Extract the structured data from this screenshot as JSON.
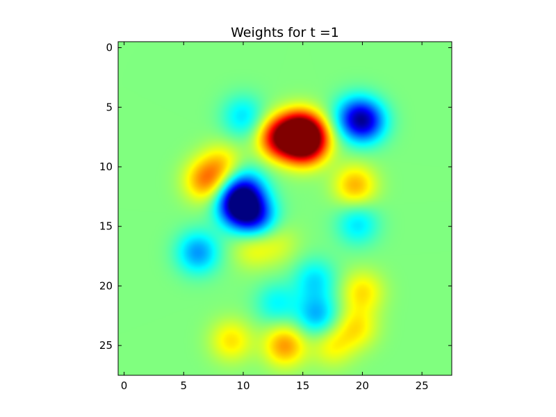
{
  "chart_data": {
    "type": "heatmap",
    "title": "Weights for t =1",
    "xlabel": "",
    "ylabel": "",
    "grid": false,
    "xlim": [
      -0.5,
      27.5
    ],
    "ylim": [
      27.5,
      -0.5
    ],
    "xticks": [
      0,
      5,
      10,
      15,
      20,
      25
    ],
    "yticks": [
      0,
      5,
      10,
      15,
      20,
      25
    ],
    "xtick_labels": [
      "0",
      "5",
      "10",
      "15",
      "20",
      "25"
    ],
    "ytick_labels": [
      "0",
      "5",
      "10",
      "15",
      "20",
      "25"
    ],
    "colormap": "jet",
    "interpolation": "smooth",
    "value_range": [
      -1,
      1
    ],
    "background_value": 0,
    "blobs": [
      {
        "x": 14.8,
        "y": 7.1,
        "value": 1.0
      },
      {
        "x": 13.0,
        "y": 7.6,
        "value": 0.75
      },
      {
        "x": 15.6,
        "y": 7.8,
        "value": 0.55
      },
      {
        "x": 15.0,
        "y": 8.4,
        "value": 0.35
      },
      {
        "x": 20.2,
        "y": 6.2,
        "value": -0.7
      },
      {
        "x": 19.2,
        "y": 5.8,
        "value": -0.35
      },
      {
        "x": 10.0,
        "y": 5.8,
        "value": -0.3
      },
      {
        "x": 9.6,
        "y": 13.2,
        "value": -0.95
      },
      {
        "x": 11.0,
        "y": 14.2,
        "value": -0.6
      },
      {
        "x": 10.2,
        "y": 11.8,
        "value": -0.45
      },
      {
        "x": 6.2,
        "y": 17.2,
        "value": -0.45
      },
      {
        "x": 19.6,
        "y": 14.8,
        "value": -0.3
      },
      {
        "x": 16.2,
        "y": 22.5,
        "value": -0.4
      },
      {
        "x": 16.0,
        "y": 19.5,
        "value": -0.3
      },
      {
        "x": 12.8,
        "y": 21.5,
        "value": -0.25
      },
      {
        "x": 6.8,
        "y": 11.2,
        "value": 0.45
      },
      {
        "x": 8.2,
        "y": 9.8,
        "value": 0.3
      },
      {
        "x": 19.4,
        "y": 11.6,
        "value": 0.4
      },
      {
        "x": 10.8,
        "y": 16.8,
        "value": 0.22
      },
      {
        "x": 20.0,
        "y": 20.5,
        "value": 0.3
      },
      {
        "x": 19.5,
        "y": 23.5,
        "value": 0.28
      },
      {
        "x": 13.5,
        "y": 25.0,
        "value": 0.45
      },
      {
        "x": 9.0,
        "y": 24.6,
        "value": 0.3
      },
      {
        "x": 17.5,
        "y": 25.0,
        "value": 0.25
      },
      {
        "x": 13.0,
        "y": 16.5,
        "value": 0.15
      }
    ]
  }
}
